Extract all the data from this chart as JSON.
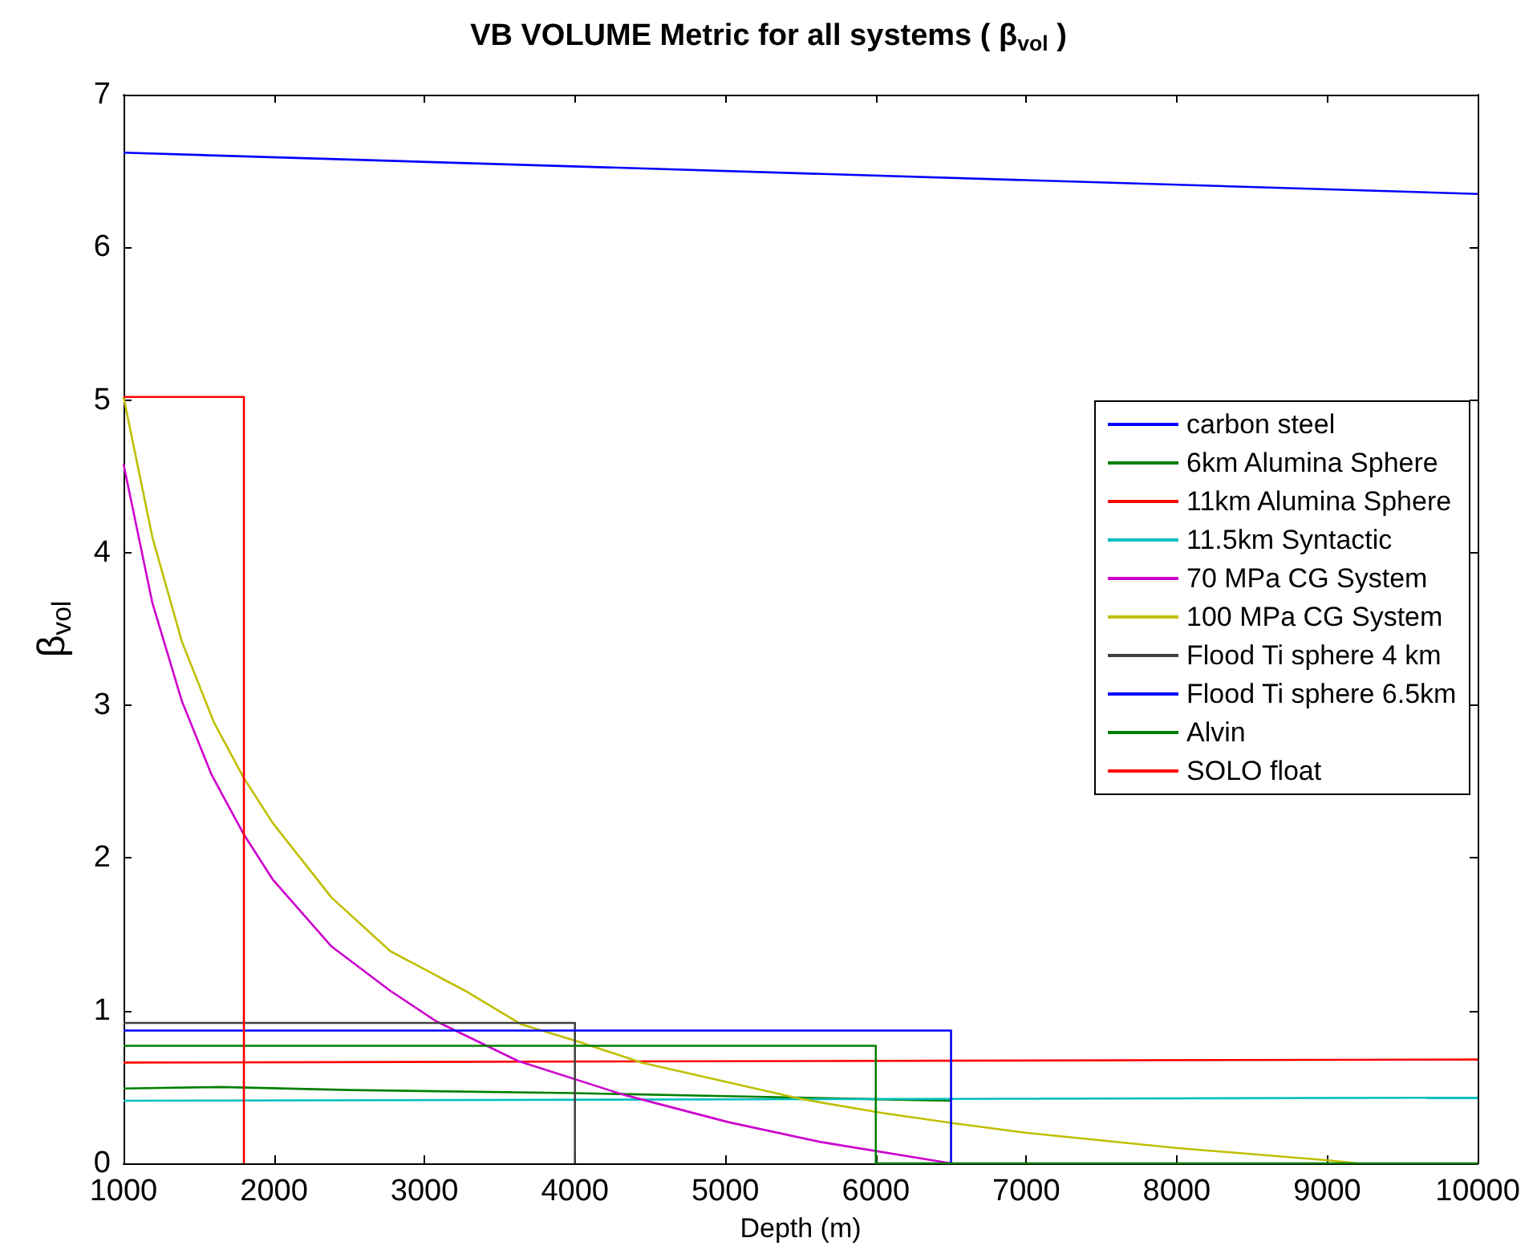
{
  "chart_data": {
    "type": "line",
    "title": "VB VOLUME Metric for all systems ( β$_{vol}$ )",
    "xlabel": "Depth (m)",
    "ylabel": "β$_{vol}$",
    "xlim": [
      1000,
      10000
    ],
    "xticks": [
      1000,
      2000,
      3000,
      4000,
      5000,
      6000,
      7000,
      8000,
      9000,
      10000
    ],
    "ylim": [
      0,
      7
    ],
    "yticks": [
      0,
      1,
      2,
      3,
      4,
      5,
      6,
      7
    ],
    "grid": false,
    "legend": "right",
    "marker": "none",
    "line_style": "solid",
    "series": [
      {
        "name": "carbon steel",
        "color": "#0000ff",
        "x": [
          1000,
          10000
        ],
        "values": [
          6.62,
          6.35
        ]
      },
      {
        "name": "6km Alumina Sphere",
        "color": "#008000",
        "x": [
          1000,
          1650,
          2500,
          4000,
          5000,
          6000,
          6500
        ],
        "values": [
          0.49,
          0.5,
          0.48,
          0.46,
          0.44,
          0.42,
          0.41
        ]
      },
      {
        "name": "11km Alumina Sphere",
        "color": "#ff0000",
        "x": [
          1000,
          10000
        ],
        "values": [
          0.66,
          0.68
        ]
      },
      {
        "name": "11.5km Syntactic",
        "color": "#00bfbf",
        "x": [
          1000,
          10000
        ],
        "values": [
          0.41,
          0.43
        ]
      },
      {
        "name": "70 MPa CG System",
        "color": "#cc00cc",
        "x": [
          1000,
          1192,
          1387,
          1583,
          1796,
          1991,
          2383,
          2773,
          3079,
          3623,
          4321,
          5019,
          5632,
          6500
        ],
        "values": [
          4.58,
          3.67,
          3.03,
          2.55,
          2.16,
          1.86,
          1.42,
          1.13,
          0.93,
          0.67,
          0.45,
          0.27,
          0.14,
          0
        ]
      },
      {
        "name": "100 MPa CG System",
        "color": "#bfbf00",
        "x": [
          1000,
          1192,
          1387,
          1600,
          1796,
          1991,
          2383,
          2773,
          3271,
          3644,
          4013,
          4444,
          5510,
          6043,
          6535,
          7002,
          8004,
          9006,
          9200
        ],
        "values": [
          5.02,
          4.1,
          3.42,
          2.89,
          2.53,
          2.23,
          1.74,
          1.39,
          1.13,
          0.91,
          0.8,
          0.66,
          0.42,
          0.33,
          0.26,
          0.2,
          0.1,
          0.02,
          0
        ]
      },
      {
        "name": "Flood Ti sphere 4 km",
        "color": "#404040",
        "x": [
          1000,
          4000,
          4000
        ],
        "values": [
          0.92,
          0.92,
          0
        ]
      },
      {
        "name": "Flood Ti sphere 6.5km",
        "color": "#0000ff",
        "x": [
          1000,
          6500,
          6500
        ],
        "values": [
          0.87,
          0.87,
          0
        ]
      },
      {
        "name": "Alvin",
        "color": "#007f00",
        "x": [
          1000,
          6000,
          6000,
          10000
        ],
        "values": [
          0.77,
          0.77,
          0,
          0
        ]
      },
      {
        "name": "SOLO float",
        "color": "#ff0000",
        "x": [
          1000,
          1800,
          1800
        ],
        "values": [
          5.02,
          5.02,
          0
        ]
      }
    ]
  }
}
